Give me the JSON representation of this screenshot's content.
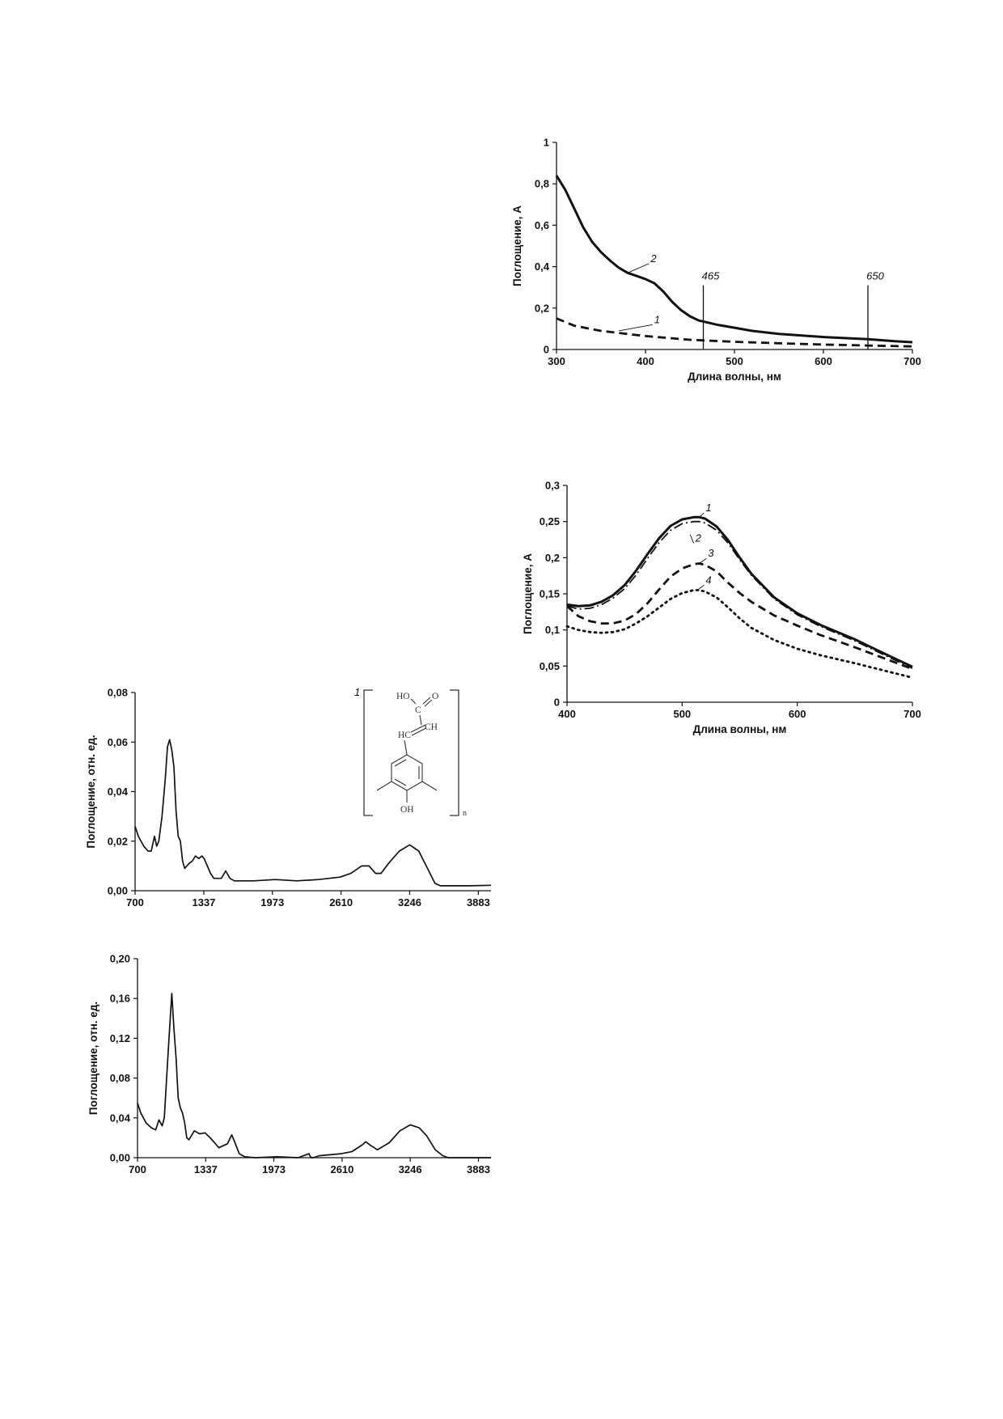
{
  "chart_data": [
    {
      "id": "chart1",
      "type": "line",
      "xlabel": "Длина волны, нм",
      "ylabel": "Поглощение, А",
      "xlim": [
        300,
        700
      ],
      "ylim": [
        0,
        1
      ],
      "xticks": [
        300,
        400,
        500,
        600,
        700
      ],
      "yticks": [
        0,
        0.2,
        0.4,
        0.6,
        0.8,
        1
      ],
      "ytick_labels": [
        "0",
        "0,2",
        "0,4",
        "0,6",
        "0,8",
        "1"
      ],
      "grid": false,
      "series": [
        {
          "name": "1",
          "style": "dashed",
          "x": [
            300,
            320,
            350,
            400,
            450,
            500,
            550,
            600,
            650,
            700
          ],
          "y": [
            0.15,
            0.115,
            0.09,
            0.065,
            0.047,
            0.037,
            0.03,
            0.024,
            0.019,
            0.015
          ]
        },
        {
          "name": "2",
          "style": "solid",
          "x": [
            300,
            310,
            320,
            330,
            340,
            350,
            360,
            370,
            380,
            390,
            400,
            410,
            420,
            430,
            440,
            450,
            460,
            470,
            480,
            500,
            520,
            550,
            600,
            650,
            680,
            700
          ],
          "y": [
            0.84,
            0.77,
            0.68,
            0.59,
            0.52,
            0.47,
            0.43,
            0.395,
            0.37,
            0.355,
            0.34,
            0.32,
            0.28,
            0.23,
            0.19,
            0.16,
            0.14,
            0.13,
            0.12,
            0.105,
            0.09,
            0.075,
            0.06,
            0.05,
            0.04,
            0.035
          ]
        }
      ],
      "annotations": [
        {
          "text": "465",
          "x": 465
        },
        {
          "text": "650",
          "x": 650
        }
      ]
    },
    {
      "id": "chart2",
      "type": "line",
      "xlabel": "Длина волны, нм",
      "ylabel": "Поглощение, А",
      "xlim": [
        400,
        700
      ],
      "ylim": [
        0,
        0.3
      ],
      "xticks": [
        400,
        500,
        600,
        700
      ],
      "yticks": [
        0,
        0.05,
        0.1,
        0.15,
        0.2,
        0.25,
        0.3
      ],
      "ytick_labels": [
        "0",
        "0,05",
        "0,1",
        "0,15",
        "0,2",
        "0,25",
        "0,3"
      ],
      "grid": false,
      "series": [
        {
          "name": "1",
          "style": "solid",
          "x": [
            400,
            410,
            420,
            430,
            440,
            450,
            460,
            470,
            480,
            490,
            500,
            510,
            515,
            520,
            530,
            540,
            550,
            560,
            580,
            600,
            620,
            650,
            680,
            700
          ],
          "y": [
            0.135,
            0.133,
            0.134,
            0.139,
            0.148,
            0.162,
            0.182,
            0.205,
            0.227,
            0.244,
            0.253,
            0.256,
            0.256,
            0.254,
            0.243,
            0.224,
            0.2,
            0.178,
            0.145,
            0.123,
            0.107,
            0.087,
            0.064,
            0.049
          ]
        },
        {
          "name": "2",
          "style": "dashdot",
          "x": [
            400,
            410,
            420,
            430,
            440,
            450,
            460,
            470,
            480,
            490,
            500,
            510,
            515,
            520,
            530,
            540,
            550,
            560,
            580,
            600,
            620,
            650,
            680,
            700
          ],
          "y": [
            0.133,
            0.129,
            0.13,
            0.135,
            0.144,
            0.157,
            0.176,
            0.199,
            0.221,
            0.238,
            0.247,
            0.25,
            0.25,
            0.248,
            0.238,
            0.22,
            0.197,
            0.176,
            0.143,
            0.121,
            0.105,
            0.085,
            0.062,
            0.047
          ]
        },
        {
          "name": "3",
          "style": "dashed",
          "x": [
            400,
            410,
            420,
            430,
            440,
            450,
            460,
            470,
            480,
            490,
            500,
            510,
            515,
            520,
            530,
            540,
            550,
            560,
            580,
            600,
            620,
            650,
            680,
            700
          ],
          "y": [
            0.133,
            0.119,
            0.112,
            0.109,
            0.109,
            0.113,
            0.122,
            0.137,
            0.156,
            0.174,
            0.185,
            0.191,
            0.192,
            0.19,
            0.181,
            0.165,
            0.151,
            0.139,
            0.12,
            0.106,
            0.093,
            0.076,
            0.058,
            0.046
          ]
        },
        {
          "name": "4",
          "style": "dotted",
          "x": [
            400,
            410,
            420,
            430,
            440,
            450,
            460,
            470,
            480,
            490,
            500,
            510,
            515,
            520,
            530,
            540,
            550,
            560,
            580,
            600,
            620,
            650,
            680,
            700
          ],
          "y": [
            0.105,
            0.1,
            0.097,
            0.096,
            0.097,
            0.101,
            0.109,
            0.119,
            0.131,
            0.143,
            0.151,
            0.155,
            0.155,
            0.153,
            0.145,
            0.131,
            0.116,
            0.103,
            0.086,
            0.074,
            0.065,
            0.054,
            0.042,
            0.034
          ]
        }
      ]
    },
    {
      "id": "chart3",
      "type": "line",
      "xlabel": "",
      "ylabel": "Поглощение, отн. ед.",
      "xlim": [
        700,
        4000
      ],
      "ylim": [
        0,
        0.08
      ],
      "xticks": [
        700,
        1337,
        1973,
        2610,
        3246,
        3883
      ],
      "yticks": [
        0,
        0.02,
        0.04,
        0.06,
        0.08
      ],
      "ytick_labels": [
        "0,00",
        "0,02",
        "0,04",
        "0,06",
        "0,08"
      ],
      "grid": false,
      "series": [
        {
          "name": "",
          "style": "solid",
          "x": [
            700,
            730,
            780,
            820,
            850,
            880,
            900,
            920,
            950,
            980,
            1000,
            1020,
            1040,
            1060,
            1080,
            1100,
            1120,
            1140,
            1160,
            1200,
            1230,
            1260,
            1290,
            1320,
            1340,
            1370,
            1400,
            1430,
            1460,
            1500,
            1540,
            1580,
            1620,
            1650,
            1700,
            1800,
            2000,
            2200,
            2400,
            2600,
            2700,
            2800,
            2870,
            2930,
            2980,
            3050,
            3150,
            3246,
            3330,
            3400,
            3480,
            3530,
            3600,
            3800,
            4000
          ],
          "y": [
            0.026,
            0.022,
            0.018,
            0.016,
            0.016,
            0.022,
            0.018,
            0.02,
            0.03,
            0.045,
            0.058,
            0.061,
            0.057,
            0.05,
            0.032,
            0.022,
            0.02,
            0.012,
            0.009,
            0.011,
            0.012,
            0.014,
            0.013,
            0.014,
            0.013,
            0.01,
            0.007,
            0.005,
            0.005,
            0.005,
            0.008,
            0.005,
            0.004,
            0.004,
            0.004,
            0.004,
            0.0045,
            0.004,
            0.0045,
            0.0055,
            0.007,
            0.01,
            0.01,
            0.007,
            0.007,
            0.011,
            0.016,
            0.0185,
            0.016,
            0.01,
            0.003,
            0.002,
            0.002,
            0.002,
            0.0022
          ]
        }
      ]
    },
    {
      "id": "chart4",
      "type": "line",
      "xlabel": "",
      "ylabel": "Поглощение, отн. ед.",
      "xlim": [
        700,
        4000
      ],
      "ylim": [
        0,
        0.2
      ],
      "xticks": [
        700,
        1337,
        1973,
        2610,
        3246,
        3883
      ],
      "yticks": [
        0,
        0.04,
        0.08,
        0.12,
        0.16,
        0.2
      ],
      "ytick_labels": [
        "0,00",
        "0,04",
        "0,08",
        "0,12",
        "0,16",
        "0,20"
      ],
      "grid": false,
      "series": [
        {
          "name": "",
          "style": "solid",
          "x": [
            700,
            730,
            780,
            830,
            870,
            900,
            930,
            950,
            980,
            1000,
            1020,
            1040,
            1060,
            1080,
            1100,
            1120,
            1140,
            1160,
            1180,
            1230,
            1280,
            1330,
            1370,
            1420,
            1460,
            1500,
            1540,
            1580,
            1610,
            1650,
            1700,
            1800,
            2000,
            2200,
            2300,
            2320,
            2340,
            2400,
            2600,
            2700,
            2800,
            2830,
            2880,
            2940,
            3050,
            3150,
            3246,
            3330,
            3400,
            3480,
            3550,
            3600,
            3700,
            4000
          ],
          "y": [
            0.055,
            0.045,
            0.035,
            0.03,
            0.028,
            0.038,
            0.032,
            0.04,
            0.095,
            0.13,
            0.165,
            0.13,
            0.1,
            0.06,
            0.05,
            0.045,
            0.035,
            0.02,
            0.018,
            0.027,
            0.024,
            0.025,
            0.021,
            0.015,
            0.01,
            0.012,
            0.014,
            0.023,
            0.015,
            0.004,
            0.001,
            0.0,
            0.001,
            0.0,
            0.004,
            0.0,
            0.0,
            0.002,
            0.004,
            0.006,
            0.013,
            0.016,
            0.012,
            0.008,
            0.015,
            0.027,
            0.033,
            0.03,
            0.022,
            0.008,
            0.002,
            0.0,
            0.0,
            0.0
          ]
        }
      ]
    }
  ],
  "structure": {
    "label_1": "1",
    "ho": "HO",
    "c": "C",
    "o": "O",
    "hc": "HC",
    "ch": "CH",
    "oh": "OH",
    "n": "n"
  }
}
